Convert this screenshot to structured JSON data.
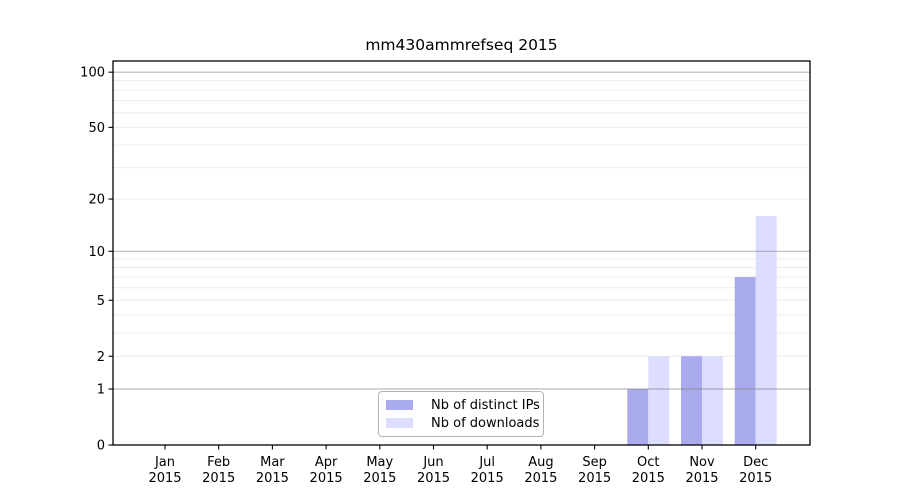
{
  "chart_data": {
    "type": "bar",
    "title": "mm430ammrefseq 2015",
    "categories": [
      "Jan 2015",
      "Feb 2015",
      "Mar 2015",
      "Apr 2015",
      "May 2015",
      "Jun 2015",
      "Jul 2015",
      "Aug 2015",
      "Sep 2015",
      "Oct 2015",
      "Nov 2015",
      "Dec 2015"
    ],
    "months": [
      "Jan",
      "Feb",
      "Mar",
      "Apr",
      "May",
      "Jun",
      "Jul",
      "Aug",
      "Sep",
      "Oct",
      "Nov",
      "Dec"
    ],
    "year": "2015",
    "series": [
      {
        "name": "Nb of distinct IPs",
        "color": "#aaaaee",
        "values": [
          0,
          0,
          0,
          0,
          0,
          0,
          0,
          0,
          0,
          1,
          2,
          7
        ]
      },
      {
        "name": "Nb of downloads",
        "color": "#ddddff",
        "values": [
          0,
          0,
          0,
          0,
          0,
          0,
          0,
          0,
          0,
          2,
          2,
          16
        ]
      }
    ],
    "xlabel": "",
    "ylabel": "",
    "yscale": "log1p",
    "ylim": [
      0,
      115
    ],
    "y_ticks": [
      0,
      1,
      2,
      5,
      10,
      20,
      50,
      100
    ],
    "grid": {
      "major": [
        1,
        10,
        100
      ],
      "minor": [
        2,
        3,
        4,
        5,
        6,
        7,
        8,
        9,
        20,
        30,
        40,
        50,
        60,
        70,
        80,
        90
      ]
    },
    "legend": {
      "position": "lower center",
      "entries": [
        "Nb of distinct IPs",
        "Nb of downloads"
      ]
    },
    "colors": {
      "background": "#ffffff",
      "axis": "#000000",
      "text": "#000000",
      "grid_minor": "#ececec",
      "grid_major": "#808080",
      "legend_border": "#b3b3b3"
    }
  }
}
